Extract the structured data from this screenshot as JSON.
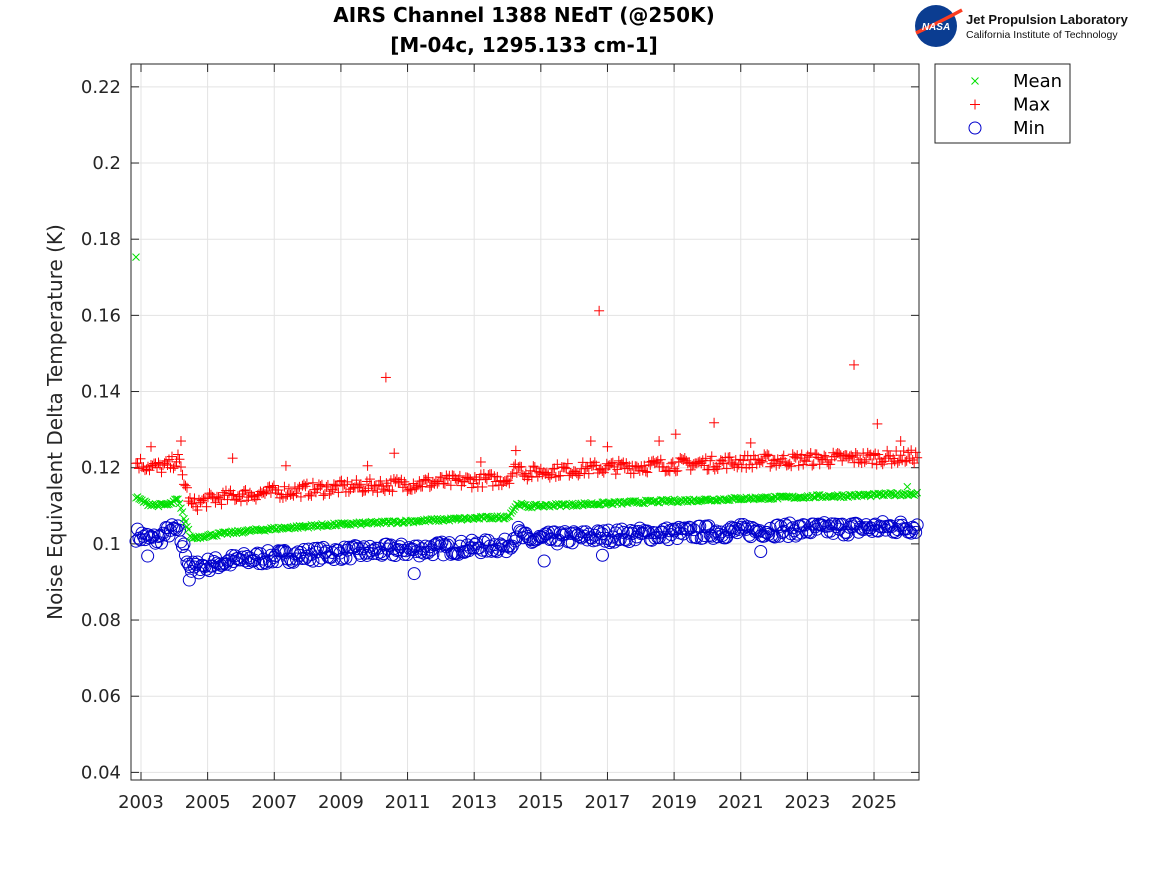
{
  "logo": {
    "org_name": "Jet Propulsion Laboratory",
    "org_sub": "California Institute of Technology",
    "badge_text": "NASA"
  },
  "chart_data": {
    "type": "scatter",
    "title_line1": "AIRS Channel 1388 NEdT (@250K)",
    "title_line2": "[M-04c, 1295.133 cm-1]",
    "xlabel": "",
    "ylabel": "Noise Equivalent Delta Temperature (K)",
    "xlim": [
      2002.7,
      2026.35
    ],
    "ylim": [
      0.038,
      0.226
    ],
    "xticks": [
      2003,
      2005,
      2007,
      2009,
      2011,
      2013,
      2015,
      2017,
      2019,
      2021,
      2023,
      2025
    ],
    "xtick_labels": [
      "2003",
      "2005",
      "2007",
      "2009",
      "2011",
      "2013",
      "2015",
      "2017",
      "2019",
      "2021",
      "2023",
      "2025"
    ],
    "yticks": [
      0.04,
      0.06,
      0.08,
      0.1,
      0.12,
      0.14,
      0.16,
      0.18,
      0.2,
      0.22
    ],
    "ytick_labels": [
      "0.04",
      "0.06",
      "0.08",
      "0.1",
      "0.12",
      "0.14",
      "0.16",
      "0.18",
      "0.2",
      "0.22"
    ],
    "grid": true,
    "legend_position": "outside-top-right",
    "colors": {
      "mean": "#00e000",
      "max": "#ff0000",
      "min": "#0000cc"
    },
    "series": [
      {
        "name": "Mean",
        "marker": "x",
        "x": [
          2002.85,
          2003.2,
          2003.5,
          2003.85,
          2004.1,
          2004.5,
          2005.0,
          2005.5,
          2006.0,
          2006.5,
          2007.0,
          2007.5,
          2008.0,
          2008.5,
          2009.0,
          2009.5,
          2010.0,
          2010.5,
          2011.0,
          2011.5,
          2012.0,
          2012.5,
          2013.0,
          2013.5,
          2014.0,
          2014.3,
          2014.6,
          2015.0,
          2015.5,
          2016.0,
          2016.5,
          2017.0,
          2017.5,
          2018.0,
          2018.5,
          2019.0,
          2019.5,
          2020.0,
          2020.5,
          2021.0,
          2021.5,
          2022.0,
          2022.5,
          2023.0,
          2023.5,
          2024.0,
          2024.5,
          2025.0,
          2025.5,
          2026.0,
          2026.3
        ],
        "y": [
          0.1122,
          0.1105,
          0.1102,
          0.1103,
          0.1118,
          0.1015,
          0.1022,
          0.1027,
          0.1032,
          0.1036,
          0.104,
          0.1043,
          0.1046,
          0.1049,
          0.1051,
          0.1053,
          0.1055,
          0.1057,
          0.1059,
          0.1061,
          0.1063,
          0.1065,
          0.1067,
          0.1069,
          0.107,
          0.1105,
          0.1098,
          0.11,
          0.1102,
          0.1103,
          0.1105,
          0.1106,
          0.1108,
          0.111,
          0.1111,
          0.1113,
          0.1114,
          0.1116,
          0.1117,
          0.1119,
          0.112,
          0.1121,
          0.1122,
          0.1124,
          0.1125,
          0.1126,
          0.1127,
          0.1128,
          0.113,
          0.1131,
          0.1132
        ],
        "outliers": [
          [
            2002.85,
            0.1753
          ],
          [
            2026.0,
            0.115
          ]
        ]
      },
      {
        "name": "Max",
        "marker": "+",
        "x": [
          2002.85,
          2003.2,
          2003.5,
          2003.85,
          2004.1,
          2004.5,
          2005.0,
          2005.5,
          2006.0,
          2006.5,
          2007.0,
          2007.5,
          2008.0,
          2008.5,
          2009.0,
          2009.5,
          2010.0,
          2010.5,
          2011.0,
          2011.5,
          2012.0,
          2012.5,
          2013.0,
          2013.5,
          2014.0,
          2014.3,
          2014.6,
          2015.0,
          2015.5,
          2016.0,
          2016.5,
          2017.0,
          2017.5,
          2018.0,
          2018.5,
          2019.0,
          2019.5,
          2020.0,
          2020.5,
          2021.0,
          2021.5,
          2022.0,
          2022.5,
          2023.0,
          2023.5,
          2024.0,
          2024.5,
          2025.0,
          2025.5,
          2026.0,
          2026.3
        ],
        "y": [
          0.1215,
          0.1205,
          0.12,
          0.1205,
          0.1225,
          0.11,
          0.1115,
          0.1122,
          0.1128,
          0.1132,
          0.1136,
          0.1139,
          0.1142,
          0.1145,
          0.1148,
          0.115,
          0.1153,
          0.1155,
          0.1157,
          0.116,
          0.1162,
          0.1164,
          0.1166,
          0.1168,
          0.117,
          0.1205,
          0.1185,
          0.119,
          0.1193,
          0.1196,
          0.1198,
          0.12,
          0.1202,
          0.1204,
          0.1206,
          0.1208,
          0.121,
          0.1212,
          0.1214,
          0.1216,
          0.1218,
          0.1219,
          0.122,
          0.1222,
          0.1223,
          0.1224,
          0.1225,
          0.1226,
          0.1227,
          0.1228,
          0.1229
        ],
        "outliers": [
          [
            2003.3,
            0.1255
          ],
          [
            2004.2,
            0.127
          ],
          [
            2005.75,
            0.1225
          ],
          [
            2007.35,
            0.1205
          ],
          [
            2009.8,
            0.1205
          ],
          [
            2010.35,
            0.1437
          ],
          [
            2010.6,
            0.1238
          ],
          [
            2013.2,
            0.1215
          ],
          [
            2014.25,
            0.1245
          ],
          [
            2016.5,
            0.127
          ],
          [
            2016.75,
            0.1612
          ],
          [
            2017.0,
            0.1255
          ],
          [
            2018.55,
            0.127
          ],
          [
            2019.05,
            0.1288
          ],
          [
            2020.2,
            0.1318
          ],
          [
            2021.3,
            0.1265
          ],
          [
            2024.4,
            0.147
          ],
          [
            2025.1,
            0.1315
          ],
          [
            2025.8,
            0.127
          ]
        ]
      },
      {
        "name": "Min",
        "marker": "o",
        "x": [
          2002.85,
          2003.2,
          2003.5,
          2003.85,
          2004.1,
          2004.5,
          2005.0,
          2005.5,
          2006.0,
          2006.5,
          2007.0,
          2007.5,
          2008.0,
          2008.5,
          2009.0,
          2009.5,
          2010.0,
          2010.5,
          2011.0,
          2011.5,
          2012.0,
          2012.5,
          2013.0,
          2013.5,
          2014.0,
          2014.3,
          2014.6,
          2015.0,
          2015.5,
          2016.0,
          2016.5,
          2017.0,
          2017.5,
          2018.0,
          2018.5,
          2019.0,
          2019.5,
          2020.0,
          2020.5,
          2021.0,
          2021.5,
          2022.0,
          2022.5,
          2023.0,
          2023.5,
          2024.0,
          2024.5,
          2025.0,
          2025.5,
          2026.0,
          2026.3
        ],
        "y": [
          0.1025,
          0.1015,
          0.101,
          0.1035,
          0.1035,
          0.0935,
          0.0945,
          0.0952,
          0.0958,
          0.0962,
          0.0966,
          0.0969,
          0.0972,
          0.0974,
          0.0976,
          0.0978,
          0.098,
          0.0982,
          0.0984,
          0.0986,
          0.0988,
          0.099,
          0.0992,
          0.0994,
          0.0995,
          0.103,
          0.1008,
          0.1012,
          0.1015,
          0.1017,
          0.1019,
          0.1021,
          0.1023,
          0.1025,
          0.1026,
          0.1028,
          0.1029,
          0.1031,
          0.1032,
          0.1034,
          0.1035,
          0.1036,
          0.1037,
          0.1038,
          0.1039,
          0.104,
          0.1041,
          0.1042,
          0.1043,
          0.1044,
          0.1045
        ],
        "outliers": [
          [
            2003.2,
            0.0968
          ],
          [
            2004.45,
            0.0905
          ],
          [
            2011.2,
            0.0922
          ],
          [
            2015.1,
            0.0955
          ],
          [
            2016.85,
            0.097
          ],
          [
            2021.6,
            0.098
          ]
        ]
      }
    ]
  }
}
